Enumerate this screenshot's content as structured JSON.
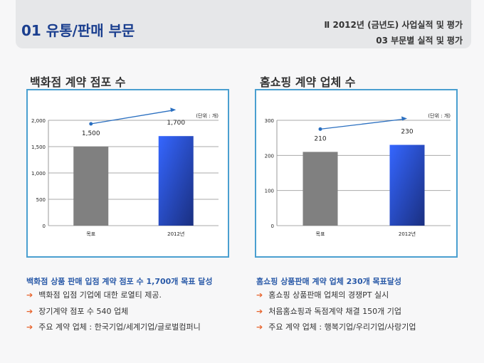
{
  "header": {
    "title": "01  유통/판매 부문",
    "chapter": "Ⅱ  2012년 (금년도) 사업실적 및 평가",
    "section": "03  부문별 실적 및 평가"
  },
  "left": {
    "title": "백화점 계약 점포 수",
    "headline": "백화점 상품 판매 입점 계약 점포 수 1,700개 목표 달성",
    "bullets": [
      "백화점 입점 기업에 대한 로열티 제공.",
      "장기계약 점포 수 540 업체",
      "주요 계약 업체 : 한국기업/세계기업/글로벌컴퍼니"
    ]
  },
  "right": {
    "title": "홈쇼핑 계약 업체 수",
    "headline": "홈쇼핑 상품판매 계약 업체 230개 목표달성",
    "bullets": [
      "홈쇼핑 상품판매 업체의 경쟁PT 실시",
      "처음홈쇼핑과 독점계약 채결 150개 기업",
      "주요 계약 업체 : 행복기업/우리기업/사랑기업"
    ]
  },
  "chart_data": [
    {
      "type": "bar",
      "categories": [
        "목표",
        "2012년"
      ],
      "values": [
        1500,
        1700
      ],
      "data_labels": [
        "1,500",
        "1,700"
      ],
      "ylim": [
        0,
        2000
      ],
      "yticks": [
        "0",
        "500",
        "1,000",
        "1,500",
        "2,000"
      ],
      "unit": "(단위 : 개)",
      "colors": [
        "#808080",
        "#2f5de8"
      ],
      "grid": true
    },
    {
      "type": "bar",
      "categories": [
        "목표",
        "2012년"
      ],
      "values": [
        210,
        230
      ],
      "data_labels": [
        "210",
        "230"
      ],
      "ylim": [
        0,
        300
      ],
      "yticks": [
        "0",
        "100",
        "200",
        "300"
      ],
      "unit": "(단위 : 개)",
      "colors": [
        "#808080",
        "#2f5de8"
      ],
      "grid": true
    }
  ]
}
